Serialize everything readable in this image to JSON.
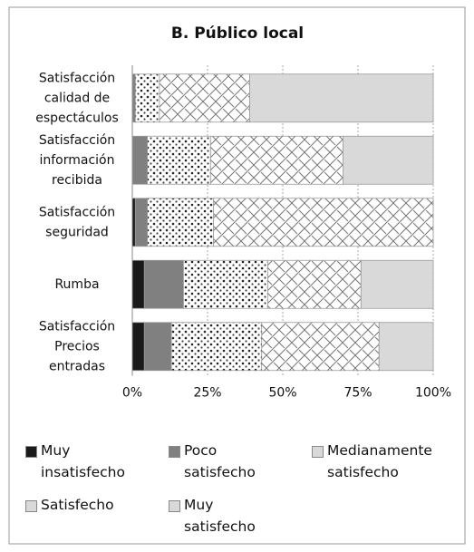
{
  "chart_data": {
    "type": "stacked-barh",
    "title": "B. Público local",
    "categories": [
      [
        "Satisfacción",
        "calidad de",
        "espectáculos"
      ],
      [
        "Satisfacción",
        "información",
        "recibida"
      ],
      [
        "Satisfacción",
        "seguridad"
      ],
      [
        "Rumba"
      ],
      [
        "Satisfacción",
        "Precios",
        "entradas"
      ]
    ],
    "series": [
      {
        "name": "Muy insatisfecho",
        "color": "#1a1a1a",
        "values": [
          0,
          0,
          1,
          4,
          4
        ]
      },
      {
        "name": "Poco satisfecho",
        "color": "#808080",
        "values": [
          1,
          5,
          4,
          13,
          9
        ]
      },
      {
        "name": "Medianamente satisfecho",
        "color": "#d9d9d9",
        "pattern": "dots",
        "values": [
          8,
          21,
          22,
          28,
          30
        ]
      },
      {
        "name": "Satisfecho",
        "color": "#d9d9d9",
        "pattern": "hatch",
        "values": [
          30,
          44,
          73,
          31,
          39
        ]
      },
      {
        "name": "Muy satisfecho",
        "color": "#d9d9d9",
        "values": [
          61,
          30,
          0,
          24,
          18
        ]
      }
    ],
    "xlim": [
      0,
      100
    ],
    "xticks": [
      {
        "value": 0,
        "label": "0%"
      },
      {
        "value": 25,
        "label": "25%"
      },
      {
        "value": 50,
        "label": "50%"
      },
      {
        "value": 75,
        "label": "75%"
      },
      {
        "value": 100,
        "label": "100%"
      }
    ],
    "grid": true
  }
}
